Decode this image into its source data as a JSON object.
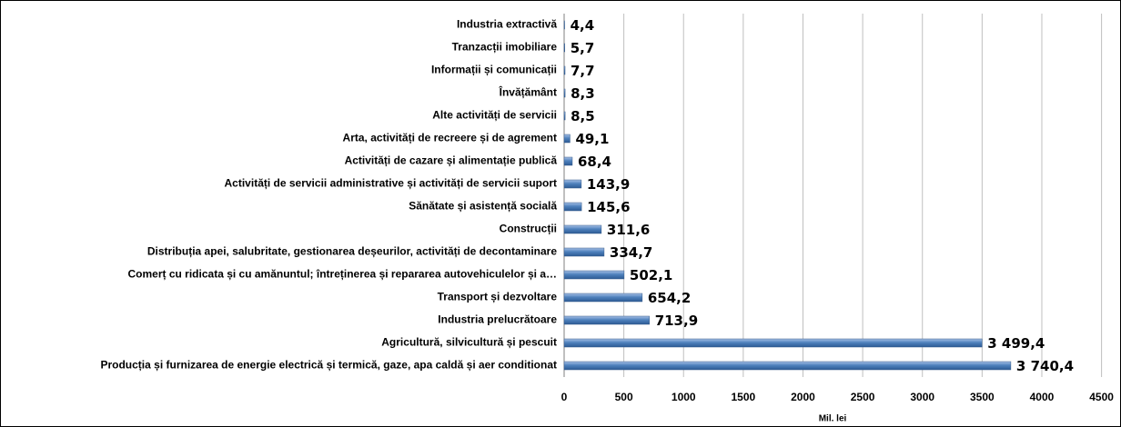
{
  "chart_data": {
    "type": "bar",
    "orientation": "horizontal",
    "categories": [
      "Industria extractivă",
      "Tranzacții imobiliare",
      "Informații și comunicații",
      "Învățământ",
      "Alte activități de servicii",
      "Arta, activități de recreere și de agrement",
      "Activități de cazare și alimentație publică",
      "Activități de servicii administrative și activități de servicii suport",
      "Sănătate și asistență socială",
      "Construcții",
      "Distribuția apei, salubritate, gestionarea deșeurilor, activități de decontaminare",
      "Comerț cu ridicata și cu amănuntul; întreținerea și repararea autovehiculelor și a…",
      "Transport și dezvoltare",
      "Industria prelucrătoare",
      "Agricultură, silvicultură și pescuit",
      "Producția  și furnizarea de energie electrică și termică, gaze, apa caldă și aer conditionat"
    ],
    "values": [
      4.4,
      5.7,
      7.7,
      8.3,
      8.5,
      49.1,
      68.4,
      143.9,
      145.6,
      311.6,
      334.7,
      502.1,
      654.2,
      713.9,
      3499.4,
      3740.4
    ],
    "value_labels": [
      "4,4",
      "5,7",
      "7,7",
      "8,3",
      "8,5",
      "49,1",
      "68,4",
      "143,9",
      "145,6",
      "311,6",
      "334,7",
      "502,1",
      "654,2",
      "713,9",
      "3 499,4",
      "3 740,4"
    ],
    "color": "#4f81bd",
    "xlabel": "Mil. lei",
    "xlim": [
      0,
      4500
    ],
    "xticks": [
      0,
      500,
      1000,
      1500,
      2000,
      2500,
      3000,
      3500,
      4000,
      4500
    ],
    "grid": true
  }
}
